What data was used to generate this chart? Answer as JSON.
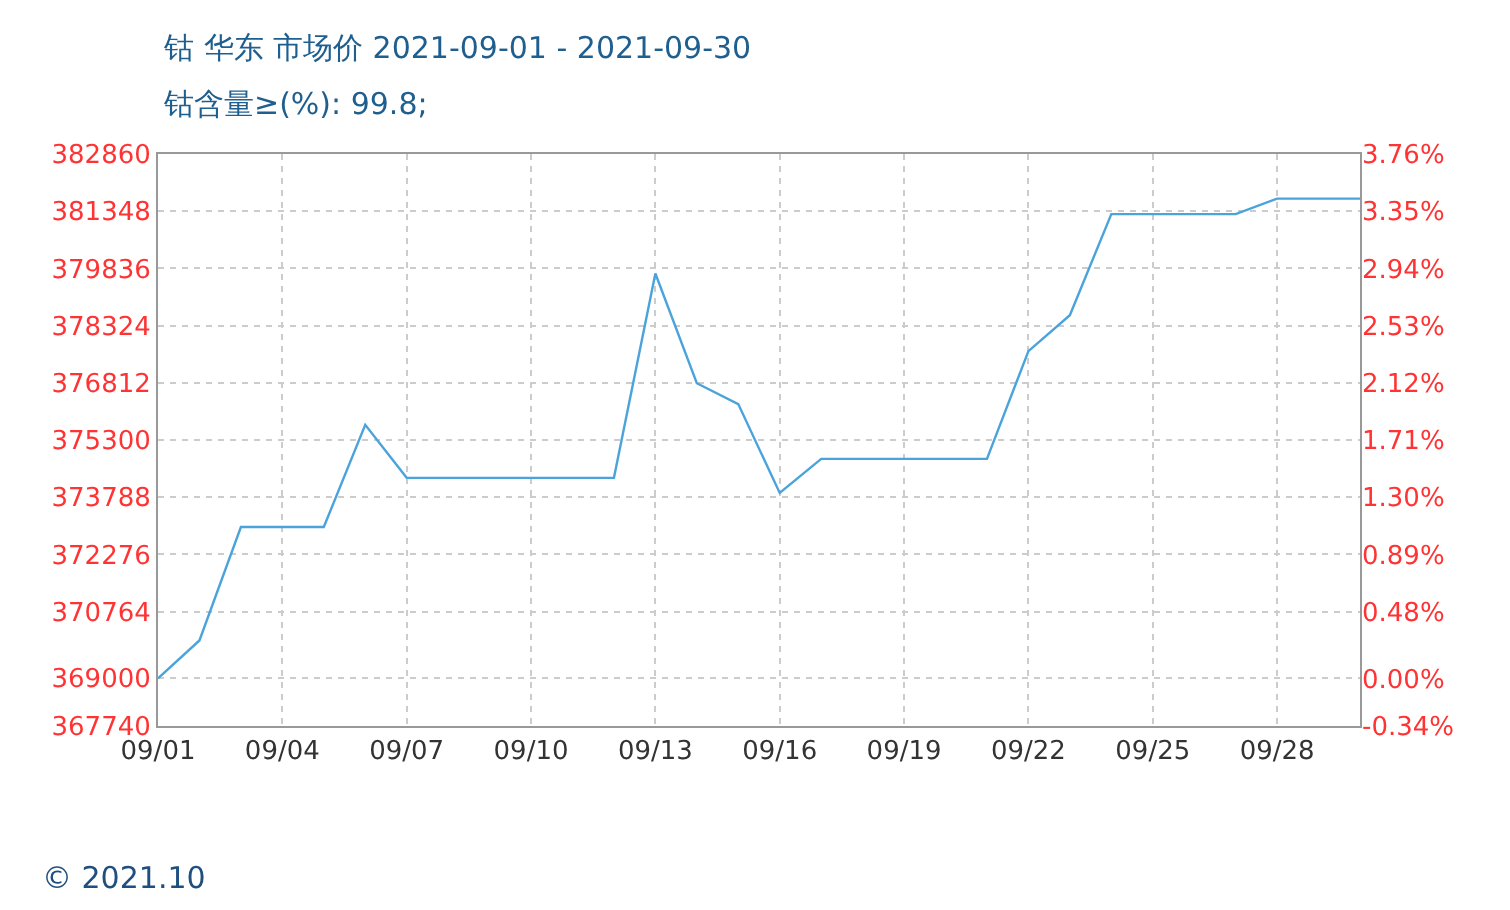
{
  "chart_data": {
    "type": "line",
    "title": "钴 华东 市场价 2021-09-01 - 2021-09-30",
    "subtitle": "钴含量≥(%): 99.8;",
    "x": [
      "2021-09-01",
      "2021-09-02",
      "2021-09-03",
      "2021-09-04",
      "2021-09-05",
      "2021-09-06",
      "2021-09-07",
      "2021-09-08",
      "2021-09-09",
      "2021-09-10",
      "2021-09-11",
      "2021-09-12",
      "2021-09-13",
      "2021-09-14",
      "2021-09-15",
      "2021-09-16",
      "2021-09-17",
      "2021-09-18",
      "2021-09-19",
      "2021-09-20",
      "2021-09-21",
      "2021-09-22",
      "2021-09-23",
      "2021-09-24",
      "2021-09-25",
      "2021-09-26",
      "2021-09-27",
      "2021-09-28",
      "2021-09-29",
      "2021-09-30"
    ],
    "series": [
      {
        "color": "#4ba3dc",
        "values": [
          369000,
          370000,
          373000,
          373000,
          373000,
          375700,
          374300,
          374300,
          374300,
          374300,
          374300,
          374300,
          379700,
          376800,
          376250,
          373900,
          374800,
          374800,
          374800,
          374800,
          374800,
          377650,
          378600,
          381270,
          381270,
          381270,
          381270,
          381680,
          381680,
          381680
        ]
      }
    ],
    "xlim": [
      "2021-09-01",
      "2021-09-30"
    ],
    "xticks": [
      {
        "value": "2021-09-01",
        "label": "09/01"
      },
      {
        "value": "2021-09-04",
        "label": "09/04"
      },
      {
        "value": "2021-09-07",
        "label": "09/07"
      },
      {
        "value": "2021-09-10",
        "label": "09/10"
      },
      {
        "value": "2021-09-13",
        "label": "09/13"
      },
      {
        "value": "2021-09-16",
        "label": "09/16"
      },
      {
        "value": "2021-09-19",
        "label": "09/19"
      },
      {
        "value": "2021-09-22",
        "label": "09/22"
      },
      {
        "value": "2021-09-25",
        "label": "09/25"
      },
      {
        "value": "2021-09-28",
        "label": "09/28"
      }
    ],
    "ylim": [
      367740,
      382860
    ],
    "yticks": [
      367740,
      369000,
      370764,
      372276,
      373788,
      375300,
      376812,
      378324,
      379836,
      381348,
      382860
    ],
    "y2lim": [
      -0.34,
      3.76
    ],
    "y2ticks": [
      {
        "value": -0.34,
        "label": "-0.34%"
      },
      {
        "value": 0,
        "label": "0.00%"
      },
      {
        "value": 0.48,
        "label": "0.48%"
      },
      {
        "value": 0.89,
        "label": "0.89%"
      },
      {
        "value": 1.3,
        "label": "1.30%"
      },
      {
        "value": 1.71,
        "label": "1.71%"
      },
      {
        "value": 2.12,
        "label": "2.12%"
      },
      {
        "value": 2.53,
        "label": "2.53%"
      },
      {
        "value": 2.94,
        "label": "2.94%"
      },
      {
        "value": 3.35,
        "label": "3.35%"
      },
      {
        "value": 3.76,
        "label": "3.76%"
      }
    ],
    "grid": true,
    "marker": "none",
    "line_style": "solid",
    "annotations": [
      "© 2021.10"
    ]
  }
}
